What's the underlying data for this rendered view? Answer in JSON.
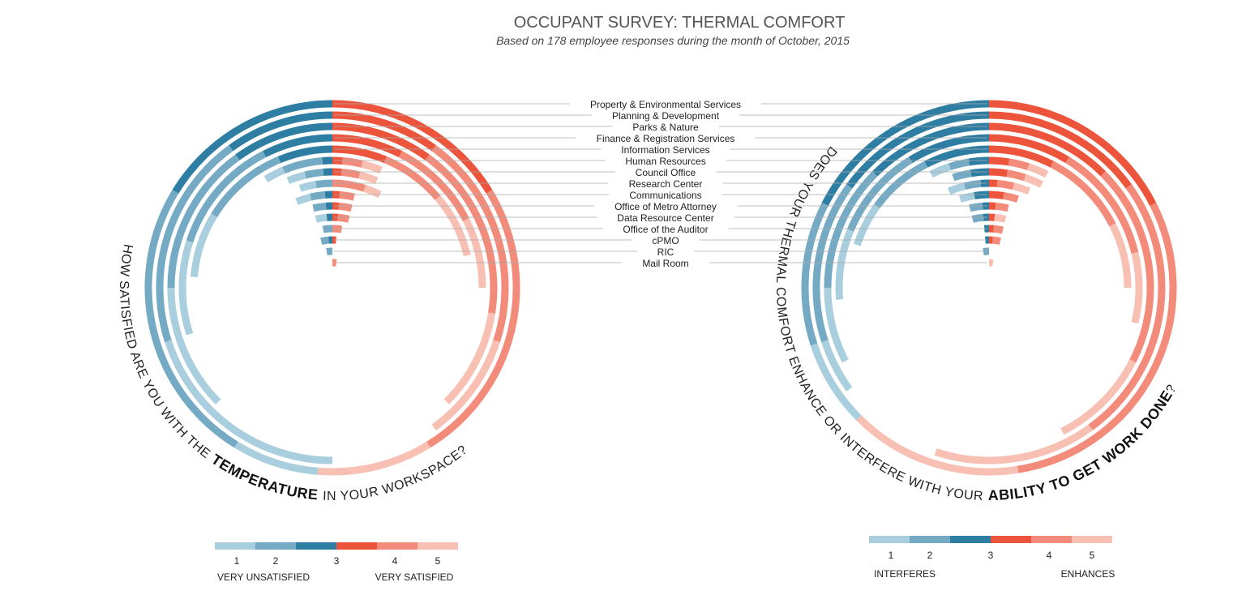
{
  "chart_data": {
    "type": "radial_bar",
    "title": "OCCUPANT SURVEY: THERMAL COMFORT",
    "subtitle": "Based on 178 employee responses during the month of October, 2015",
    "categories": [
      "Property & Environmental Services",
      "Planning & Development",
      "Parks & Nature",
      "Finance & Registration Services",
      "Information Services",
      "Human Resources",
      "Council Office",
      "Research Center",
      "Communications",
      "Office of Metro Attorney",
      "Data Resource Center",
      "Office of the Auditor",
      "cPMO",
      "RIC",
      "Mail Room"
    ],
    "panels": [
      {
        "question": [
          "HOW SATISFIED ARE YOU WITH THE",
          "TEMPERATURE",
          "IN YOUR WORKSPACE?"
        ],
        "emphasis": 1,
        "low_label": "VERY UNSATISFIED",
        "high_label": "VERY SATISFIED",
        "series": [
          {
            "name": "1",
            "color": "#a9cedd",
            "values": [
              3,
              8,
              5,
              4,
              3,
              1,
              1,
              1,
              1,
              0,
              1,
              0,
              0,
              0,
              0
            ]
          },
          {
            "name": "2",
            "color": "#74aac4",
            "values": [
              10,
              8,
              6,
              5,
              4,
              2,
              1,
              1,
              1,
              1,
              0,
              1,
              1,
              1,
              0
            ]
          },
          {
            "name": "3",
            "color": "#2e7ea4",
            "color2": "#ec553c",
            "values": [
              13,
              8,
              8,
              6,
              5,
              1,
              1,
              0,
              1,
              1,
              1,
              0,
              1,
              0,
              0
            ]
          },
          {
            "name": "4",
            "color": "#f28b7a",
            "values": [
              10,
              8,
              7,
              4,
              3,
              1,
              1,
              2,
              1,
              1,
              1,
              1,
              0,
              0,
              1
            ]
          },
          {
            "name": "5",
            "color": "#f8bfb3",
            "values": [
              4,
              4,
              4,
              3,
              3,
              1,
              1,
              1,
              0,
              0,
              0,
              0,
              0,
              0,
              0
            ]
          }
        ]
      },
      {
        "question": [
          "DOES YOUR THERMAL COMFORT ENHANCE OR INTERFERE WITH YOUR",
          "ABILITY TO GET WORK DONE",
          "?"
        ],
        "emphasis": 1,
        "low_label": "INTERFERES",
        "high_label": "ENHANCES",
        "series": [
          {
            "name": "1",
            "color": "#a9cedd",
            "values": [
              3,
              2,
              3,
              3,
              2,
              1,
              0,
              1,
              1,
              0,
              0,
              0,
              0,
              0,
              0
            ]
          },
          {
            "name": "2",
            "color": "#74aac4",
            "values": [
              5,
              6,
              5,
              4,
              3,
              1,
              1,
              1,
              0,
              1,
              1,
              0,
              0,
              1,
              0
            ]
          },
          {
            "name": "3",
            "color": "#2e7ea4",
            "color2": "#ec553c",
            "values": [
              14,
              12,
              10,
              7,
              6,
              2,
              2,
              1,
              2,
              1,
              1,
              1,
              1,
              0,
              0
            ]
          },
          {
            "name": "4",
            "color": "#f28b7a",
            "values": [
              12,
              10,
              8,
              5,
              4,
              1,
              1,
              1,
              1,
              1,
              0,
              1,
              1,
              0,
              0
            ]
          },
          {
            "name": "5",
            "color": "#f8bfb3",
            "values": [
              6,
              6,
              4,
              3,
              3,
              1,
              1,
              1,
              0,
              0,
              1,
              0,
              0,
              0,
              1
            ]
          }
        ]
      }
    ]
  }
}
